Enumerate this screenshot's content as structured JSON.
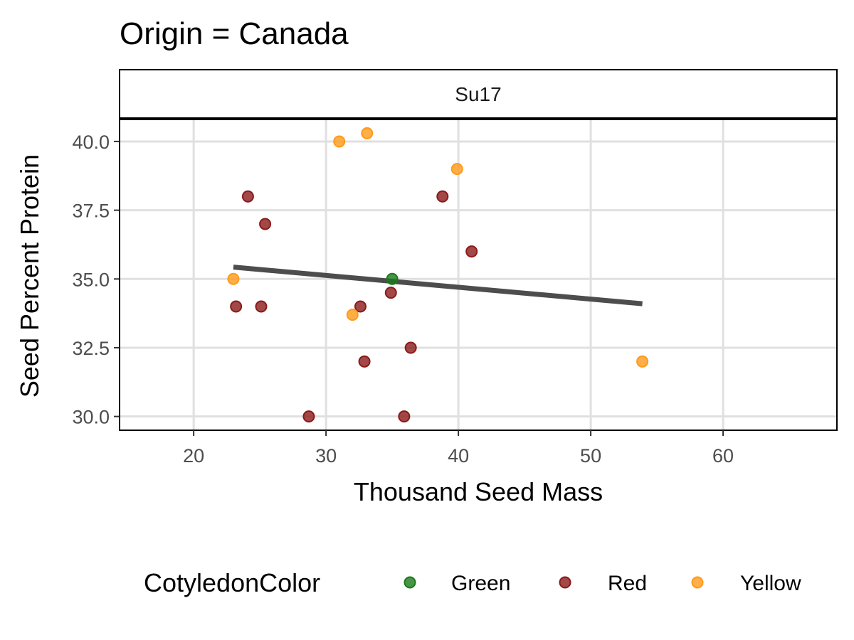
{
  "title": "Origin = Canada",
  "facet_label": "Su17",
  "chart_data": {
    "type": "scatter",
    "title": "Origin = Canada",
    "facet": "Su17",
    "xlabel": "Thousand Seed Mass",
    "ylabel": "Seed Percent Protein",
    "xlim": [
      14.4,
      68.6
    ],
    "ylim": [
      29.5,
      40.8
    ],
    "x_ticks": [
      20,
      30,
      40,
      50,
      60
    ],
    "y_ticks": [
      30.0,
      32.5,
      35.0,
      37.5,
      40.0
    ],
    "x_tick_labels": [
      "20",
      "30",
      "40",
      "50",
      "60"
    ],
    "y_tick_labels": [
      "30.0",
      "32.5",
      "35.0",
      "37.5",
      "40.0"
    ],
    "grid": true,
    "legend": {
      "title": "CotyledonColor",
      "position": "bottom",
      "entries": [
        {
          "label": "Green",
          "color": "#1a7a1a"
        },
        {
          "label": "Red",
          "color": "#8b1a1a"
        },
        {
          "label": "Yellow",
          "color": "#ff9a1a"
        }
      ]
    },
    "series": [
      {
        "name": "Green",
        "color": "#1a7a1a",
        "points": [
          [
            35.0,
            35.0
          ]
        ]
      },
      {
        "name": "Red",
        "color": "#8b1a1a",
        "points": [
          [
            24.1,
            38.0
          ],
          [
            25.4,
            37.0
          ],
          [
            38.8,
            38.0
          ],
          [
            41.0,
            36.0
          ],
          [
            23.2,
            34.0
          ],
          [
            25.1,
            34.0
          ],
          [
            32.6,
            34.0
          ],
          [
            34.9,
            34.5
          ],
          [
            36.4,
            32.5
          ],
          [
            32.9,
            32.0
          ],
          [
            28.7,
            30.0
          ],
          [
            35.9,
            30.0
          ]
        ]
      },
      {
        "name": "Yellow",
        "color": "#ff9a1a",
        "points": [
          [
            31.0,
            40.0
          ],
          [
            33.1,
            40.3
          ],
          [
            39.9,
            39.0
          ],
          [
            23.0,
            35.0
          ],
          [
            32.0,
            33.7
          ],
          [
            53.9,
            32.0
          ]
        ]
      }
    ],
    "trend_line": {
      "color": "#4d4d4d",
      "x": [
        23.0,
        53.9
      ],
      "y": [
        35.43,
        34.1
      ]
    }
  }
}
